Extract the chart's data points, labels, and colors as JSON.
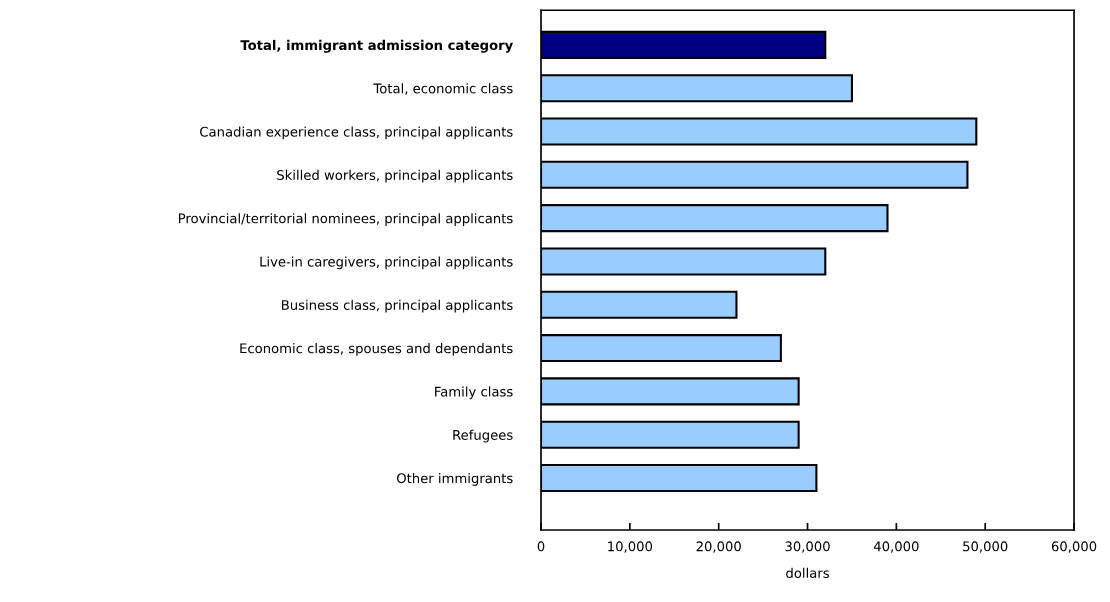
{
  "chart_data": {
    "type": "bar",
    "orientation": "horizontal",
    "xlabel": "dollars",
    "categories": [
      "Total, immigrant admission category",
      "Total, economic class",
      "Canadian experience class, principal applicants",
      "Skilled workers, principal applicants",
      "Provincial/territorial nominees, principal applicants",
      "Live-in caregivers, principal applicants",
      "Business class, principal applicants",
      "Economic class, spouses and dependants",
      "Family class",
      "Refugees",
      "Other immigrants"
    ],
    "values": [
      32000,
      35000,
      49000,
      48000,
      39000,
      32000,
      22000,
      27000,
      29000,
      29000,
      31000
    ],
    "colors": [
      "#000080",
      "#99ccff",
      "#99ccff",
      "#99ccff",
      "#99ccff",
      "#99ccff",
      "#99ccff",
      "#99ccff",
      "#99ccff",
      "#99ccff",
      "#99ccff"
    ],
    "xlim": [
      0,
      60000
    ],
    "xticks": [
      0,
      {
        "value": 10000,
        "label": "10,000"
      },
      {
        "value": 20000,
        "label": "20,000"
      },
      {
        "value": 30000,
        "label": "30,000"
      },
      {
        "value": 40000,
        "label": "40,000"
      },
      {
        "value": 50000,
        "label": "50,000"
      },
      {
        "value": 60000,
        "label": "60,000"
      }
    ],
    "grid": false
  }
}
